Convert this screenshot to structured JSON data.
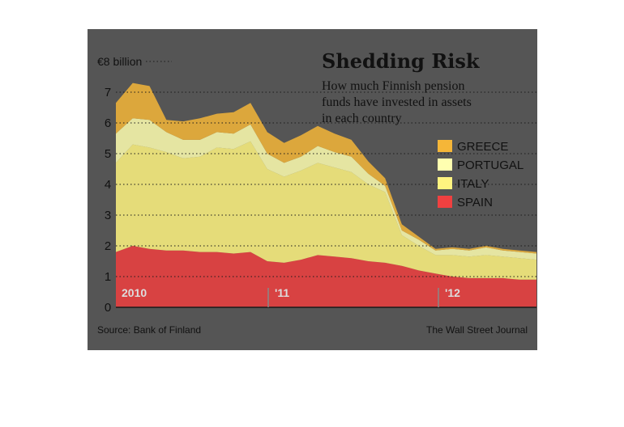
{
  "chart_data": {
    "type": "area",
    "stacked": true,
    "title": "Shedding Risk",
    "subtitle_lines": [
      "How much Finnish pension",
      "funds have invested in assets",
      "in each country"
    ],
    "y_unit_label": "€8 billion",
    "ylim": [
      0,
      8
    ],
    "yticks": [
      "0",
      "1",
      "2",
      "3",
      "4",
      "5",
      "6",
      "7"
    ],
    "x_tick_labels": [
      "2010",
      "'11",
      "'12"
    ],
    "x": [
      0,
      1,
      2,
      3,
      4,
      5,
      6,
      7,
      8,
      9,
      10,
      11,
      12,
      13,
      14,
      15,
      16,
      17,
      18,
      19,
      20,
      21,
      22,
      23,
      24,
      25
    ],
    "series": [
      {
        "name": "SPAIN",
        "color": "#f04040",
        "values": [
          1.8,
          2.0,
          1.9,
          1.85,
          1.85,
          1.8,
          1.8,
          1.75,
          1.8,
          1.5,
          1.45,
          1.55,
          1.7,
          1.65,
          1.6,
          1.5,
          1.45,
          1.35,
          1.2,
          1.1,
          1.0,
          0.95,
          0.95,
          0.95,
          0.9,
          0.9
        ]
      },
      {
        "name": "ITALY",
        "color": "#fff480",
        "values": [
          2.9,
          3.3,
          3.3,
          3.2,
          3.0,
          3.1,
          3.4,
          3.4,
          3.6,
          3.0,
          2.8,
          2.9,
          3.0,
          2.9,
          2.8,
          2.5,
          2.3,
          1.0,
          0.8,
          0.6,
          0.7,
          0.7,
          0.75,
          0.7,
          0.7,
          0.65
        ]
      },
      {
        "name": "PORTUGAL",
        "color": "#ffffb0",
        "values": [
          0.95,
          0.85,
          0.9,
          0.65,
          0.6,
          0.55,
          0.5,
          0.5,
          0.55,
          0.5,
          0.45,
          0.45,
          0.55,
          0.5,
          0.5,
          0.35,
          0.2,
          0.15,
          0.2,
          0.15,
          0.2,
          0.2,
          0.25,
          0.2,
          0.2,
          0.2
        ]
      },
      {
        "name": "GREECE",
        "color": "#f5b638",
        "values": [
          1.0,
          1.15,
          1.1,
          0.4,
          0.6,
          0.7,
          0.6,
          0.7,
          0.7,
          0.7,
          0.65,
          0.7,
          0.65,
          0.6,
          0.55,
          0.4,
          0.25,
          0.2,
          0.1,
          0.05,
          0.05,
          0.05,
          0.05,
          0.05,
          0.05,
          0.05
        ]
      }
    ],
    "legend_position": "right"
  },
  "source": "Source: Bank of Finland",
  "credit": "The Wall Street Journal",
  "colors": {
    "panel": "#555555",
    "grid": "#1a1a1a",
    "axis": "#1a1a1a",
    "tick_year": "#888888",
    "year_label": "#dddddd"
  }
}
